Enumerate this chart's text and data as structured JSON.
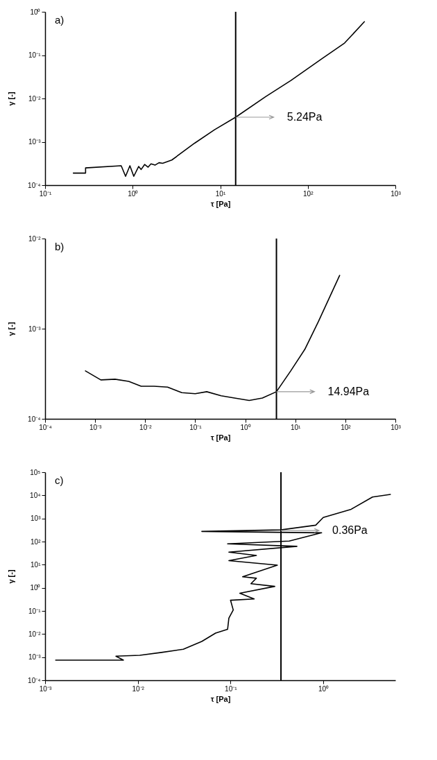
{
  "chart_data": [
    {
      "type": "line",
      "title": "a)",
      "xlabel": "τ [Pa]",
      "ylabel": "γ [-]",
      "log": "xy",
      "grid": false,
      "marker": "none",
      "line_style": "solid",
      "xlim": [
        0.1,
        1000
      ],
      "ylim": [
        0.0001,
        1
      ],
      "xticks": [
        {
          "value": 0.1,
          "label": "10⁻¹"
        },
        {
          "value": 1,
          "label": "10⁰"
        },
        {
          "value": 10,
          "label": "10¹"
        },
        {
          "value": 100,
          "label": "10²"
        },
        {
          "value": 1000,
          "label": "10³"
        }
      ],
      "yticks": [
        {
          "value": 0.0001,
          "label": "10⁻⁴"
        },
        {
          "value": 0.001,
          "label": "10⁻³"
        },
        {
          "value": 0.01,
          "label": "10⁻²"
        },
        {
          "value": 0.1,
          "label": "10⁻¹"
        },
        {
          "value": 1,
          "label": "10⁰"
        }
      ],
      "series": [
        {
          "color": "#000000",
          "x": [
            0.21,
            0.29,
            0.29,
            0.74,
            0.83,
            0.93,
            1.03,
            1.17,
            1.25,
            1.37,
            1.5,
            1.62,
            1.8,
            2.0,
            2.2,
            2.8,
            5.1,
            8.6,
            15,
            33,
            64,
            145,
            263,
            443
          ],
          "values": [
            0.00019,
            0.00019,
            0.00025,
            0.00028,
            0.00016,
            0.00028,
            0.00016,
            0.00027,
            0.00023,
            0.0003,
            0.00026,
            0.00031,
            0.00029,
            0.00033,
            0.00032,
            0.00038,
            0.00093,
            0.0019,
            0.0037,
            0.011,
            0.026,
            0.083,
            0.19,
            0.59
          ]
        }
      ],
      "ref_lines": [
        {
          "axis": "x",
          "value": 15,
          "color": "#000000"
        }
      ],
      "annotations": [
        {
          "text": "5.24Pa",
          "x": 15,
          "y": 0.0037
        }
      ]
    },
    {
      "type": "line",
      "title": "b)",
      "xlabel": "τ [Pa]",
      "ylabel": "γ [-]",
      "log": "xy",
      "grid": false,
      "marker": "none",
      "line_style": "solid",
      "xlim": [
        0.0001,
        1000
      ],
      "ylim": [
        0.0001,
        0.01
      ],
      "xticks": [
        {
          "value": 0.0001,
          "label": "10⁻⁴"
        },
        {
          "value": 0.001,
          "label": "10⁻³"
        },
        {
          "value": 0.01,
          "label": "10⁻²"
        },
        {
          "value": 0.1,
          "label": "10⁻¹"
        },
        {
          "value": 1,
          "label": "10⁰"
        },
        {
          "value": 10,
          "label": "10¹"
        },
        {
          "value": 100,
          "label": "10²"
        },
        {
          "value": 1000,
          "label": "10³"
        }
      ],
      "yticks": [
        {
          "value": 0.0001,
          "label": "10⁻⁴"
        },
        {
          "value": 0.001,
          "label": "10⁻³"
        },
        {
          "value": 0.01,
          "label": "10⁻²"
        }
      ],
      "series": [
        {
          "color": "#000000",
          "x": [
            0.00064,
            0.0013,
            0.0025,
            0.0047,
            0.0083,
            0.015,
            0.028,
            0.054,
            0.1,
            0.17,
            0.33,
            0.61,
            1.2,
            2.2,
            4.2,
            8.1,
            15.5,
            29,
            77
          ],
          "values": [
            0.00034,
            0.00027,
            0.000275,
            0.00026,
            0.00023,
            0.00023,
            0.000225,
            0.000195,
            0.00019,
            0.0002,
            0.00018,
            0.00017,
            0.00016,
            0.00017,
            0.0002,
            0.00034,
            0.00059,
            0.0012,
            0.0039
          ]
        }
      ],
      "ref_lines": [
        {
          "axis": "x",
          "value": 4.2,
          "color": "#000000"
        }
      ],
      "annotations": [
        {
          "text": "14.94Pa",
          "x": 4.2,
          "y": 0.0002
        }
      ]
    },
    {
      "type": "line",
      "title": "c)",
      "xlabel": "τ [Pa]",
      "ylabel": "γ [-]",
      "log": "xy",
      "grid": false,
      "marker": "none",
      "line_style": "solid",
      "xlim": [
        0.001,
        6
      ],
      "ylim": [
        0.0001,
        100000
      ],
      "xticks": [
        {
          "value": 0.001,
          "label": "10⁻³"
        },
        {
          "value": 0.01,
          "label": "10⁻²"
        },
        {
          "value": 0.1,
          "label": "10⁻¹"
        },
        {
          "value": 1,
          "label": "10⁰"
        }
      ],
      "yticks": [
        {
          "value": 0.0001,
          "label": "10⁻⁴"
        },
        {
          "value": 0.001,
          "label": "10⁻³"
        },
        {
          "value": 0.01,
          "label": "10⁻²"
        },
        {
          "value": 0.1,
          "label": "10⁻¹"
        },
        {
          "value": 1,
          "label": "10⁰"
        },
        {
          "value": 10,
          "label": "10¹"
        },
        {
          "value": 100,
          "label": "10²"
        },
        {
          "value": 1000,
          "label": "10³"
        },
        {
          "value": 10000,
          "label": "10⁴"
        },
        {
          "value": 100000,
          "label": "10⁵"
        }
      ],
      "series": [
        {
          "color": "#000000",
          "x": [
            0.0013,
            0.007,
            0.0058,
            0.0105,
            0.018,
            0.031,
            0.049,
            0.069,
            0.093,
            0.096,
            0.107,
            0.1,
            0.18,
            0.126,
            0.3,
            0.166,
            0.19,
            0.135,
            0.32,
            0.096,
            0.19,
            0.096,
            0.52,
            0.093,
            0.43,
            0.96,
            0.049,
            0.35,
            0.83,
            1.0,
            2.0,
            3.4,
            5.3
          ],
          "values": [
            0.00074,
            0.00074,
            0.0011,
            0.0012,
            0.0016,
            0.0022,
            0.0048,
            0.011,
            0.016,
            0.049,
            0.11,
            0.29,
            0.33,
            0.58,
            1.15,
            1.5,
            2.6,
            3,
            9.6,
            15,
            25,
            35,
            62,
            80,
            105,
            240,
            275,
            320,
            510,
            1100,
            2500,
            8500,
            11000
          ]
        }
      ],
      "ref_lines": [
        {
          "axis": "x",
          "value": 0.35,
          "color": "#000000"
        }
      ],
      "annotations": [
        {
          "text": "0.36Pa",
          "x": 0.35,
          "y": 300
        }
      ]
    }
  ]
}
